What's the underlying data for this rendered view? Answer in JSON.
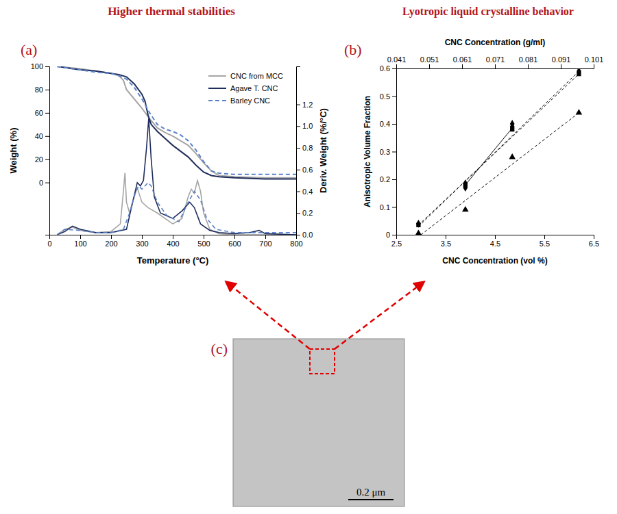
{
  "chart_data": [
    {
      "type": "line",
      "title": "Higher thermal stabilities",
      "panel_label": "(a)",
      "x_label": "Temperature (°C)",
      "y_label": "Weight (%)",
      "y2_label": "Deriv. Weight (%/°C)",
      "xlim": [
        0,
        800
      ],
      "xticks": [
        0,
        100,
        200,
        300,
        400,
        500,
        600,
        700,
        800
      ],
      "ylim": [
        -45,
        100
      ],
      "yticks": [
        0,
        20,
        40,
        60,
        80,
        100
      ],
      "y2lim": [
        0,
        1.55
      ],
      "y2ticks": [
        {
          "value": 0,
          "label": "0.0"
        },
        {
          "value": 0.2,
          "label": "0.2"
        },
        {
          "value": 0.4,
          "label": "0.4"
        },
        {
          "value": 0.6,
          "label": "0.6"
        },
        {
          "value": 0.8,
          "label": "0.8"
        },
        {
          "value": 1,
          "label": "1.0"
        },
        {
          "value": 1.2,
          "label": "1.2"
        }
      ],
      "legend": "top-right",
      "series": [
        {
          "name": "CNC from MCC",
          "color": "#a6a6a6",
          "line_style": "solid",
          "x": [
            25,
            100,
            150,
            200,
            225,
            240,
            250,
            275,
            300,
            325,
            350,
            375,
            400,
            425,
            450,
            475,
            500,
            525,
            550,
            600,
            700,
            800
          ],
          "values": [
            100,
            98,
            96,
            94,
            92,
            88,
            80,
            72,
            64,
            55,
            47,
            43,
            40,
            36,
            32,
            25,
            17,
            10,
            6,
            5,
            4,
            4
          ]
        },
        {
          "name": "Agave T. CNC",
          "color": "#1f2d5c",
          "line_style": "solid",
          "x": [
            25,
            100,
            150,
            200,
            225,
            250,
            275,
            300,
            310,
            320,
            330,
            350,
            375,
            400,
            425,
            450,
            475,
            500,
            525,
            550,
            600,
            700,
            800
          ],
          "values": [
            100,
            97,
            96,
            94,
            93,
            91,
            85,
            76,
            70,
            58,
            50,
            44,
            38,
            32,
            27,
            22,
            15,
            9,
            6,
            5,
            4,
            3,
            3
          ]
        },
        {
          "name": "Barley CNC",
          "color": "#5b82c8",
          "line_style": "dashed",
          "x": [
            25,
            100,
            150,
            200,
            225,
            250,
            275,
            300,
            325,
            350,
            375,
            400,
            425,
            450,
            475,
            500,
            525,
            550,
            600,
            700,
            800
          ],
          "values": [
            100,
            97,
            95,
            94,
            92,
            89,
            82,
            72,
            60,
            50,
            46,
            44,
            41,
            36,
            28,
            18,
            10,
            8,
            7,
            7,
            7
          ]
        },
        {
          "color": "#a6a6a6",
          "line_style": "solid",
          "axis": "y2",
          "x": [
            25,
            50,
            75,
            100,
            150,
            200,
            230,
            240,
            245,
            250,
            260,
            275,
            285,
            300,
            320,
            350,
            400,
            430,
            450,
            460,
            470,
            480,
            490,
            500,
            520,
            550,
            600,
            800
          ],
          "values": [
            0,
            0.05,
            0.07,
            0.04,
            0.02,
            0.03,
            0.1,
            0.4,
            0.57,
            0.3,
            0.2,
            0.35,
            0.43,
            0.3,
            0.25,
            0.2,
            0.1,
            0.15,
            0.35,
            0.42,
            0.38,
            0.5,
            0.4,
            0.2,
            0.05,
            0.01,
            0,
            0
          ]
        },
        {
          "color": "#1f2d5c",
          "line_style": "solid",
          "axis": "y2",
          "x": [
            25,
            50,
            75,
            100,
            150,
            200,
            250,
            270,
            285,
            295,
            305,
            315,
            322,
            330,
            340,
            360,
            400,
            430,
            455,
            470,
            490,
            520,
            550,
            600,
            650,
            680,
            700,
            800
          ],
          "values": [
            0,
            0.03,
            0.08,
            0.05,
            0.02,
            0.02,
            0.05,
            0.3,
            0.48,
            0.45,
            0.5,
            0.8,
            1.07,
            0.7,
            0.35,
            0.2,
            0.15,
            0.22,
            0.3,
            0.25,
            0.1,
            0.04,
            0.02,
            0.01,
            0.02,
            0.04,
            0.01,
            0
          ]
        },
        {
          "color": "#5b82c8",
          "line_style": "dashed",
          "axis": "y2",
          "x": [
            25,
            50,
            100,
            150,
            200,
            240,
            260,
            280,
            290,
            300,
            320,
            330,
            350,
            380,
            420,
            450,
            470,
            490,
            510,
            540,
            600,
            800
          ],
          "values": [
            0,
            0.05,
            0.04,
            0.02,
            0.02,
            0.05,
            0.2,
            0.4,
            0.45,
            0.42,
            0.48,
            0.45,
            0.3,
            0.18,
            0.12,
            0.3,
            0.4,
            0.32,
            0.15,
            0.05,
            0.02,
            0.02
          ]
        }
      ]
    },
    {
      "type": "scatter",
      "title": "Lyotropic liquid crystalline behavior",
      "panel_label": "(b)",
      "x_label": "CNC Concentration (vol %)",
      "x2_label": "CNC Concentration (g/ml)",
      "y_label": "Anisotropic Volume Fraction",
      "xlim": [
        2.5,
        6.5
      ],
      "xticks": [
        2.5,
        3.5,
        4.5,
        5.5,
        6.5
      ],
      "x2lim": [
        0.041,
        0.101
      ],
      "x2ticks": [
        0.041,
        0.051,
        0.061,
        0.071,
        0.081,
        0.091,
        0.101
      ],
      "ylim": [
        0,
        0.6
      ],
      "yticks": [
        0,
        0.1,
        0.2,
        0.3,
        0.4,
        0.5,
        0.6
      ],
      "series": [
        {
          "type": "scatter",
          "marker": "diamond",
          "color": "#000000",
          "x": [
            2.95,
            3.9,
            3.9,
            4.85,
            4.85,
            6.2
          ],
          "values": [
            0.04,
            0.17,
            0.185,
            0.39,
            0.4,
            0.59
          ]
        },
        {
          "type": "scatter",
          "marker": "square",
          "color": "#000000",
          "x": [
            2.95,
            3.9,
            4.85,
            6.2
          ],
          "values": [
            0.035,
            0.18,
            0.38,
            0.58
          ]
        },
        {
          "type": "scatter",
          "marker": "triangle",
          "color": "#000000",
          "x": [
            2.95,
            3.9,
            4.85,
            6.2
          ],
          "values": [
            0.005,
            0.09,
            0.28,
            0.44
          ]
        },
        {
          "type": "line",
          "line_style": "dashed",
          "color": "#000000",
          "x": [
            2.95,
            6.2
          ],
          "values": [
            0.03,
            0.59
          ]
        },
        {
          "type": "line",
          "line_style": "solid",
          "color": "#000000",
          "x": [
            3.9,
            4.85
          ],
          "values": [
            0.18,
            0.385
          ]
        },
        {
          "type": "line",
          "line_style": "dashed",
          "color": "#000000",
          "x": [
            2.95,
            6.2
          ],
          "values": [
            0.035,
            0.58
          ]
        },
        {
          "type": "line",
          "line_style": "dashed",
          "color": "#000000",
          "x": [
            3.0,
            6.2
          ],
          "values": [
            0,
            0.44
          ]
        }
      ]
    }
  ],
  "image_panel": {
    "label": "(c)",
    "scale_bar": "0.2 μm"
  }
}
